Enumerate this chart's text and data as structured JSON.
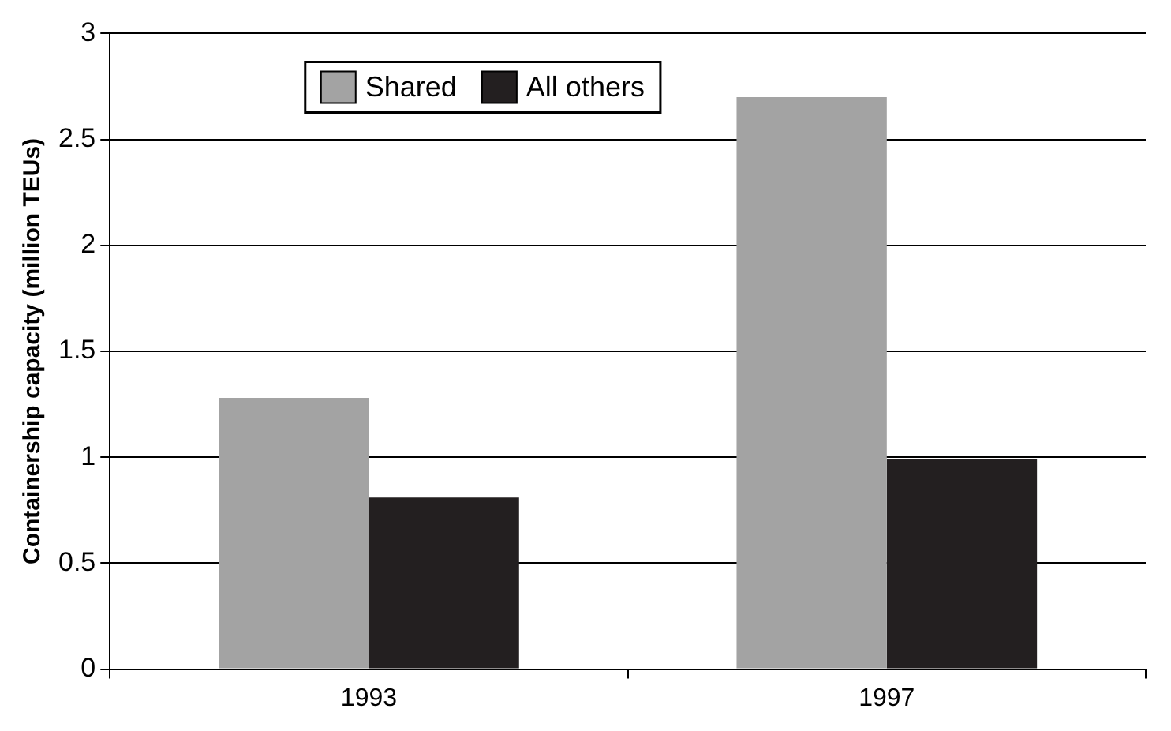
{
  "chart_data": {
    "type": "bar",
    "ylabel": "Containership capacity (million TEUs)",
    "categories": [
      "1993",
      "1997"
    ],
    "series": [
      {
        "name": "Shared",
        "color": "#a3a3a3",
        "values": [
          1.28,
          2.7
        ]
      },
      {
        "name": "All others",
        "color": "#231f20",
        "values": [
          0.81,
          0.99
        ]
      }
    ],
    "ylim": [
      0,
      3
    ],
    "yticks": [
      0,
      0.5,
      1,
      1.5,
      2,
      2.5,
      3
    ],
    "grid": "y",
    "legend": "top"
  }
}
